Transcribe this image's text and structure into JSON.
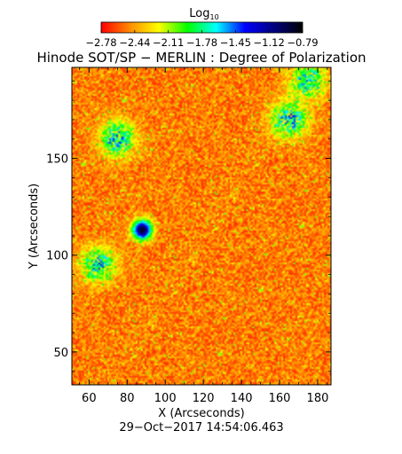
{
  "chart_data": {
    "type": "heatmap",
    "title": "Hinode SOT/SP − MERLIN : Degree of Polarization",
    "xlabel": "X (Arcseconds)",
    "ylabel": "Y (Arcseconds)",
    "timestamp": "29−Oct−2017 14:54:06.463",
    "xlim": [
      51,
      187
    ],
    "ylim": [
      33,
      197
    ],
    "x_ticks": [
      "60",
      "80",
      "100",
      "120",
      "140",
      "160",
      "180"
    ],
    "y_ticks": [
      "50",
      "100",
      "150"
    ],
    "colorbar": {
      "title": "Log",
      "title_sub": "10",
      "ticks": [
        "−2.78",
        "−2.44",
        "−2.11",
        "−1.78",
        "−1.45",
        "−1.12",
        "−0.79"
      ],
      "range": [
        -2.78,
        -0.79
      ],
      "colormap": [
        "#ff0000",
        "#ff8c00",
        "#ffff00",
        "#00ff00",
        "#00ffff",
        "#0000ff",
        "#000080",
        "#000000"
      ]
    },
    "features": [
      {
        "name": "pore",
        "x": 88,
        "y": 113,
        "level": -0.85
      },
      {
        "name": "network-upper-left",
        "x": 75,
        "y": 160,
        "level": -1.4
      },
      {
        "name": "network-upper-right",
        "x": 165,
        "y": 170,
        "level": -1.4
      },
      {
        "name": "network-top-right",
        "x": 175,
        "y": 190,
        "level": -1.5
      },
      {
        "name": "network-left",
        "x": 65,
        "y": 95,
        "level": -1.5
      }
    ]
  }
}
